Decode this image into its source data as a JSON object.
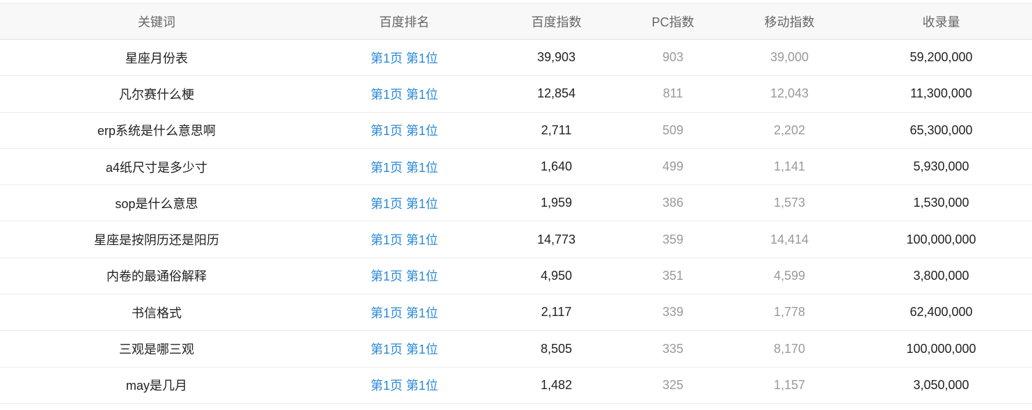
{
  "table": {
    "headers": [
      "关键词",
      "百度排名",
      "百度指数",
      "PC指数",
      "移动指数",
      "收录量"
    ],
    "rows": [
      {
        "keyword": "星座月份表",
        "rank": "第1页 第1位",
        "baidu_index": "39,903",
        "pc_index": "903",
        "mobile_index": "39,000",
        "indexed": "59,200,000"
      },
      {
        "keyword": "凡尔赛什么梗",
        "rank": "第1页 第1位",
        "baidu_index": "12,854",
        "pc_index": "811",
        "mobile_index": "12,043",
        "indexed": "11,300,000"
      },
      {
        "keyword": "erp系统是什么意思啊",
        "rank": "第1页 第1位",
        "baidu_index": "2,711",
        "pc_index": "509",
        "mobile_index": "2,202",
        "indexed": "65,300,000"
      },
      {
        "keyword": "a4纸尺寸是多少寸",
        "rank": "第1页 第1位",
        "baidu_index": "1,640",
        "pc_index": "499",
        "mobile_index": "1,141",
        "indexed": "5,930,000"
      },
      {
        "keyword": "sop是什么意思",
        "rank": "第1页 第1位",
        "baidu_index": "1,959",
        "pc_index": "386",
        "mobile_index": "1,573",
        "indexed": "1,530,000"
      },
      {
        "keyword": "星座是按阴历还是阳历",
        "rank": "第1页 第1位",
        "baidu_index": "14,773",
        "pc_index": "359",
        "mobile_index": "14,414",
        "indexed": "100,000,000"
      },
      {
        "keyword": "内卷的最通俗解释",
        "rank": "第1页 第1位",
        "baidu_index": "4,950",
        "pc_index": "351",
        "mobile_index": "4,599",
        "indexed": "3,800,000"
      },
      {
        "keyword": "书信格式",
        "rank": "第1页 第1位",
        "baidu_index": "2,117",
        "pc_index": "339",
        "mobile_index": "1,778",
        "indexed": "62,400,000"
      },
      {
        "keyword": "三观是哪三观",
        "rank": "第1页 第1位",
        "baidu_index": "8,505",
        "pc_index": "335",
        "mobile_index": "8,170",
        "indexed": "100,000,000"
      },
      {
        "keyword": "may是几月",
        "rank": "第1页 第1位",
        "baidu_index": "1,482",
        "pc_index": "325",
        "mobile_index": "1,157",
        "indexed": "3,050,000"
      }
    ]
  },
  "colors": {
    "rank_link": "#2b8ad6",
    "header_bg": "#f8f8f8",
    "muted_text": "#999999",
    "main_text": "#222222"
  }
}
